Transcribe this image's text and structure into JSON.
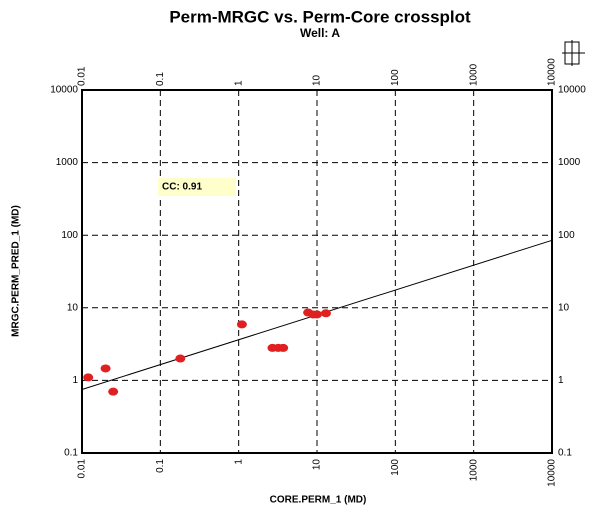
{
  "chart_data": {
    "type": "scatter",
    "title": "Perm-MRGC vs. Perm-Core crossplot",
    "subtitle": "Well: A",
    "x_label": "CORE.PERM_1 (MD)",
    "y_label": "MRGC.PERM_PRED_1 (MD)",
    "annotation": "CC: 0.91",
    "log_x": true,
    "log_y": true,
    "grid": true,
    "xlim": [
      0.01,
      10000
    ],
    "ylim": [
      0.1,
      10000
    ],
    "xticks": [
      0.01,
      0.1,
      1,
      10,
      100,
      1000,
      10000
    ],
    "yticks": [
      0.1,
      1,
      10,
      100,
      1000,
      10000
    ],
    "series": [
      {
        "color": "#e02020",
        "x": [
          0.012,
          0.02,
          0.025,
          0.18,
          1.1,
          2.7,
          3.2,
          3.7,
          7.7,
          8.9,
          10,
          13
        ],
        "values": [
          1.1,
          1.46,
          0.7,
          2.0,
          5.9,
          2.8,
          2.8,
          2.8,
          8.6,
          8.1,
          8.1,
          8.4
        ]
      }
    ],
    "trendline": {
      "color": "#000000",
      "x": [
        0.01,
        10000
      ],
      "values": [
        0.75,
        85
      ]
    }
  }
}
